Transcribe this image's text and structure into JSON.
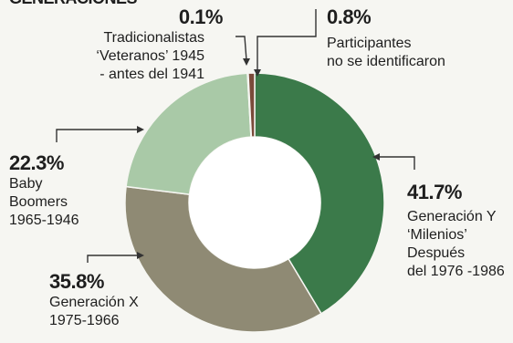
{
  "header": {
    "title_fragment": "GENERACIONES"
  },
  "chart_data": {
    "type": "pie",
    "style": "donut",
    "start_angle_deg": 0,
    "direction": "clockwise",
    "colors": {
      "generacion_y": "#3b7a4a",
      "generacion_x": "#8f8a74",
      "baby_boomers": "#a9c9a7",
      "tradicionalistas": "#d8d8d0",
      "no_identificados": "#7a4a3a"
    },
    "segments": [
      {
        "key": "generacion_y",
        "value": 41.7,
        "pct": "41.7%",
        "label_lines": [
          "Generación Y",
          "‘Milenios’",
          "Después",
          "del 1976 -1986"
        ]
      },
      {
        "key": "generacion_x",
        "value": 35.8,
        "pct": "35.8%",
        "label_lines": [
          "Generación X",
          "1975-1966"
        ]
      },
      {
        "key": "baby_boomers",
        "value": 22.3,
        "pct": "22.3%",
        "label_lines": [
          "Baby",
          "Boomers",
          "1965-1946"
        ]
      },
      {
        "key": "tradicionalistas",
        "value": 0.1,
        "pct": "0.1%",
        "label_lines": [
          "Tradicionalistas",
          "‘Veteranos’ 1945",
          "- antes del 1941"
        ]
      },
      {
        "key": "no_identificados",
        "value": 0.8,
        "pct": "0.8%",
        "label_lines": [
          "Participantes",
          "no se identificaron"
        ]
      }
    ]
  }
}
